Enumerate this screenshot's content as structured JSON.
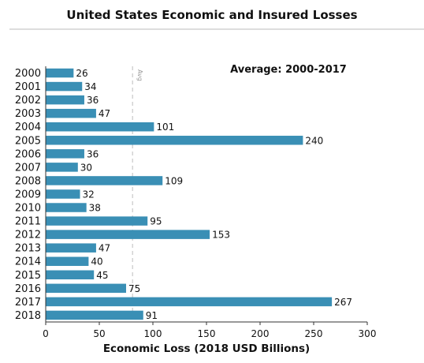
{
  "chart_data": {
    "type": "bar",
    "orientation": "horizontal",
    "title": "United States Economic and Insured Losses",
    "xlabel": "Economic Loss (2018 USD Billions)",
    "ylabel": "",
    "xlim": [
      0,
      300
    ],
    "xticks": [
      0,
      50,
      100,
      150,
      200,
      250,
      300
    ],
    "categories": [
      "2000",
      "2001",
      "2002",
      "2003",
      "2004",
      "2005",
      "2006",
      "2007",
      "2008",
      "2009",
      "2010",
      "2011",
      "2012",
      "2013",
      "2014",
      "2015",
      "2016",
      "2017",
      "2018"
    ],
    "values": [
      26,
      34,
      36,
      47,
      101,
      240,
      36,
      30,
      109,
      32,
      38,
      95,
      153,
      47,
      40,
      45,
      75,
      267,
      91
    ],
    "average_title": "Average: 2000-2017",
    "average_line_label": "Avg",
    "average_value": 81,
    "bar_color": "#3a8fb5",
    "grid": false
  }
}
